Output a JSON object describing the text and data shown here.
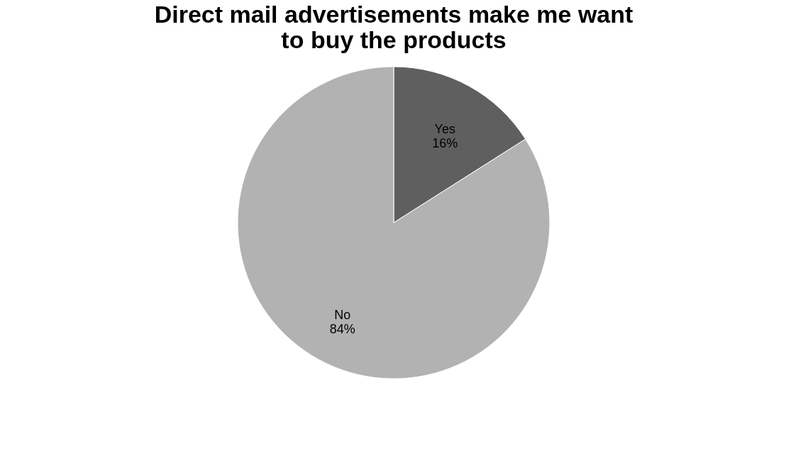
{
  "chart_data": {
    "type": "pie",
    "title": "Direct mail advertisements make me want to buy the products",
    "categories": [
      "Yes",
      "No"
    ],
    "values": [
      16,
      84
    ],
    "colors": [
      "#5f5f5f",
      "#b2b2b2"
    ],
    "value_labels": [
      "16%",
      "84%"
    ],
    "legend": false
  }
}
